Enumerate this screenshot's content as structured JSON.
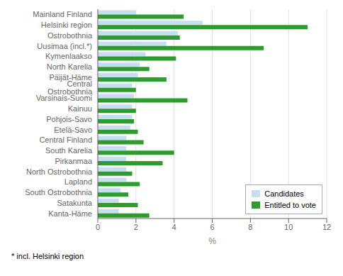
{
  "chart_data": {
    "type": "bar",
    "orientation": "horizontal",
    "categories": [
      "Mainland Finland",
      "Helsinki region",
      "Ostrobothnia",
      "Uusimaa (incl.*)",
      "Kymenlaakso",
      "North Karelia",
      "Päijät-Häme",
      "Central Ostrobothnia",
      "Varsinais-Suomi",
      "Kainuu",
      "Pohjois-Savo",
      "Etelä-Savo",
      "Central Finland",
      "South Karelia",
      "Pirkanmaa",
      "North Ostrobothnia",
      "Lapland",
      "South Ostrobothnia",
      "Satakunta",
      "Kanta-Häme"
    ],
    "series": [
      {
        "name": "Candidates",
        "color": "#c6dff0",
        "values": [
          2.0,
          5.5,
          4.2,
          3.6,
          2.5,
          2.2,
          2.1,
          1.8,
          1.9,
          1.8,
          1.8,
          1.7,
          1.5,
          1.5,
          1.5,
          1.5,
          1.5,
          1.2,
          1.1,
          1.1
        ]
      },
      {
        "name": "Entitled to vote",
        "color": "#2e9b2e",
        "values": [
          4.5,
          11.0,
          4.3,
          8.7,
          4.1,
          2.7,
          3.6,
          2.0,
          4.7,
          2.0,
          1.9,
          2.1,
          2.4,
          4.0,
          3.4,
          1.8,
          2.2,
          1.6,
          2.1,
          2.7
        ]
      }
    ],
    "xlabel": "%",
    "xlim": [
      0,
      12
    ],
    "xticks": [
      0,
      2,
      4,
      6,
      8,
      10,
      12
    ],
    "grid": true,
    "legend": "lower right",
    "annotations": [
      "* incl. Helsinki region"
    ]
  }
}
